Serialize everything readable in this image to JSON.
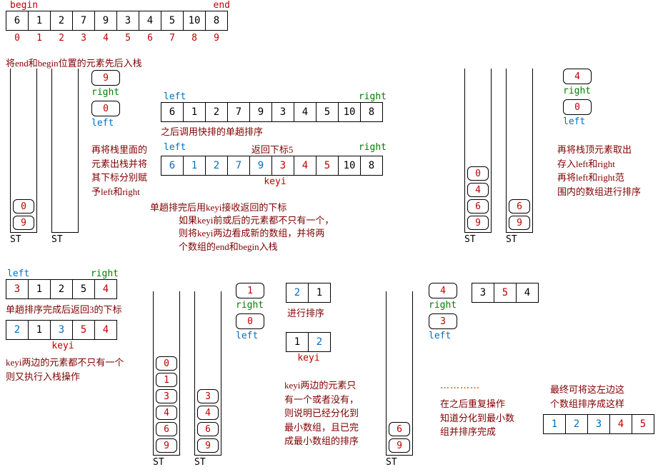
{
  "colors": {
    "red": "#c00000",
    "green": "#008000",
    "blue": "#0070c0",
    "darkred": "#800000",
    "orange": "#e46c0a",
    "black": "#000000"
  },
  "labels": {
    "begin": "begin",
    "end": "end",
    "left": "left",
    "right": "right",
    "keyi": "keyi",
    "st": "ST"
  },
  "top": {
    "array": [
      "6",
      "1",
      "2",
      "7",
      "9",
      "3",
      "4",
      "5",
      "10",
      "8"
    ],
    "indices": [
      "0",
      "1",
      "2",
      "3",
      "4",
      "5",
      "6",
      "7",
      "8",
      "9"
    ]
  },
  "step1": {
    "caption": "将end和begin位置的元素先后入栈",
    "stack_a": [
      "0",
      "9"
    ],
    "stack_b": [],
    "popped_top": "9",
    "popped_bottom": "0",
    "explain_right": "再将栈里面的元素出栈并将其下标分别赋予left和right"
  },
  "step2": {
    "array1": [
      "6",
      "1",
      "2",
      "7",
      "9",
      "3",
      "4",
      "5",
      "10",
      "8"
    ],
    "caption1": "之后调用快排的单趟排序",
    "return_label": "返回下标5",
    "array2": [
      "6",
      "1",
      "2",
      "7",
      "9",
      "3",
      "4",
      "5",
      "10",
      "8"
    ],
    "array2_colors": [
      "blue",
      "blue",
      "blue",
      "blue",
      "blue",
      "red",
      "red",
      "red",
      "black",
      "black"
    ],
    "caption2a": "单趟排完后用keyi接收返回的下标",
    "caption2b": "如果keyi前或后的元素都不只有一个，",
    "caption2c": "则将keyi两边看成新的数组，并将两",
    "caption2d": "个数组的end和begin入栈"
  },
  "step3": {
    "stack_left": [
      "0",
      "4",
      "6",
      "9"
    ],
    "stack_right": [
      "6",
      "9"
    ],
    "popped_top": "4",
    "popped_bottom": "0",
    "caption_a": "再将栈顶元素取出",
    "caption_b": "存入left和right",
    "caption_c": "再将left和right范",
    "caption_d": "围内的数组进行排序"
  },
  "step4": {
    "array_in": [
      "3",
      "1",
      "2",
      "5",
      "4"
    ],
    "caption1": "单趟排序完成后返回3的下标",
    "array_out": [
      "2",
      "1",
      "3",
      "5",
      "4"
    ],
    "array_out_colors": [
      "blue",
      "black",
      "blue",
      "red",
      "red"
    ],
    "caption2a": "keyi两边的元素都不只有一个",
    "caption2b": "则又执行入栈操作"
  },
  "step5": {
    "stack_left": [
      "0",
      "1",
      "3",
      "4",
      "6",
      "9"
    ],
    "stack_right": [
      "3",
      "4",
      "6",
      "9"
    ],
    "popped_top": "1",
    "popped_bottom": "0",
    "sort_label": "进行排序",
    "array_in": [
      "2",
      "1"
    ],
    "array_out": [
      "1",
      "2"
    ],
    "array_out_colors": [
      "black",
      "blue"
    ],
    "caption_a": "keyi两边的元素只",
    "caption_b": "有一个或者没有，",
    "caption_c": "则说明已经分化到",
    "caption_d": "最小数组，且已完",
    "caption_e": "成最小数组的排序"
  },
  "step6": {
    "stack": [
      "6",
      "9"
    ],
    "popped_top": "4",
    "popped_bottom": "3",
    "array": [
      "3",
      "5",
      "4"
    ],
    "dots": "…………",
    "caption_a": "在之后重复操作",
    "caption_b": "知道分化到最小数",
    "caption_c": "组并排序完成"
  },
  "final": {
    "caption_a": "最终可将这左边这",
    "caption_b": "个数组排序成这样",
    "array": [
      "1",
      "2",
      "3",
      "4",
      "5"
    ]
  }
}
